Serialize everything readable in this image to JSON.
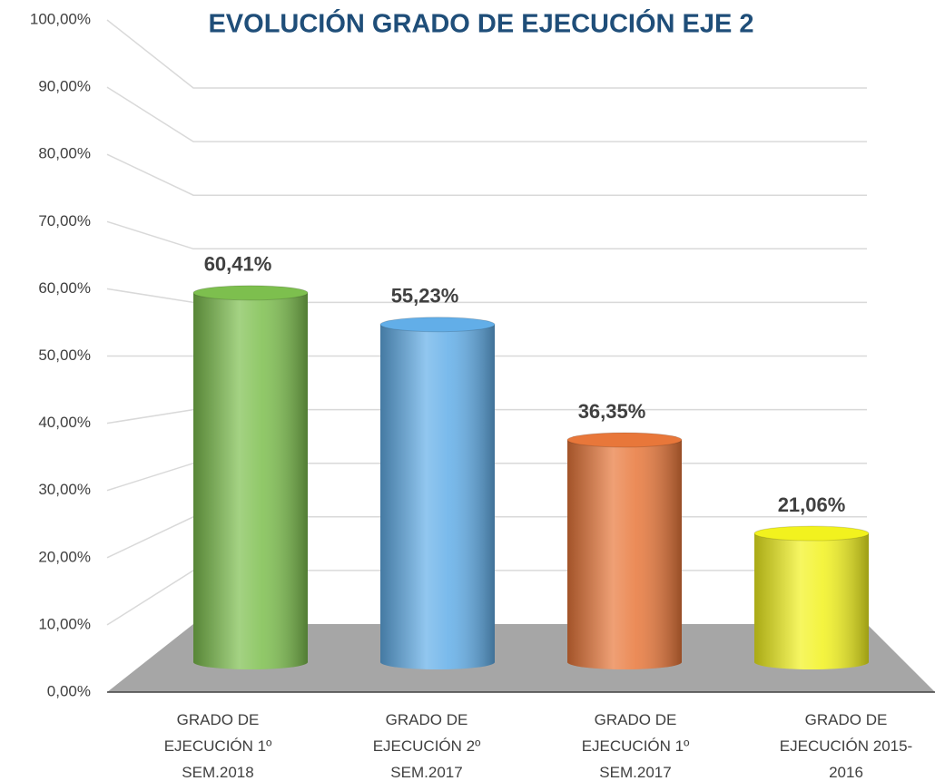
{
  "chart_data": {
    "type": "bar",
    "title": "EVOLUCIÓN GRADO DE EJECUCIÓN EJE 2",
    "categories": [
      "GRADO DE EJECUCIÓN 1º SEM.2018",
      "GRADO DE EJECUCIÓN 2º SEM.2017",
      "GRADO DE EJECUCIÓN 1º SEM.2017",
      "GRADO DE EJECUCIÓN 2015-2016"
    ],
    "values": [
      60.41,
      55.23,
      36.35,
      21.06
    ],
    "value_labels": [
      "60,41%",
      "55,23%",
      "36,35%",
      "21,06%"
    ],
    "colors": [
      "#7dbf4e",
      "#62aee8",
      "#e8773a",
      "#f2f21e"
    ],
    "ylim": [
      0,
      100
    ],
    "yticks": [
      {
        "value": 0,
        "label": "0,00%"
      },
      {
        "value": 10,
        "label": "10,00%"
      },
      {
        "value": 20,
        "label": "20,00%"
      },
      {
        "value": 30,
        "label": "30,00%"
      },
      {
        "value": 40,
        "label": "40,00%"
      },
      {
        "value": 50,
        "label": "50,00%"
      },
      {
        "value": 60,
        "label": "60,00%"
      },
      {
        "value": 70,
        "label": "70,00%"
      },
      {
        "value": 80,
        "label": "80,00%"
      },
      {
        "value": 90,
        "label": "90,00%"
      },
      {
        "value": 100,
        "label": "100,00%"
      }
    ],
    "grid": true
  }
}
